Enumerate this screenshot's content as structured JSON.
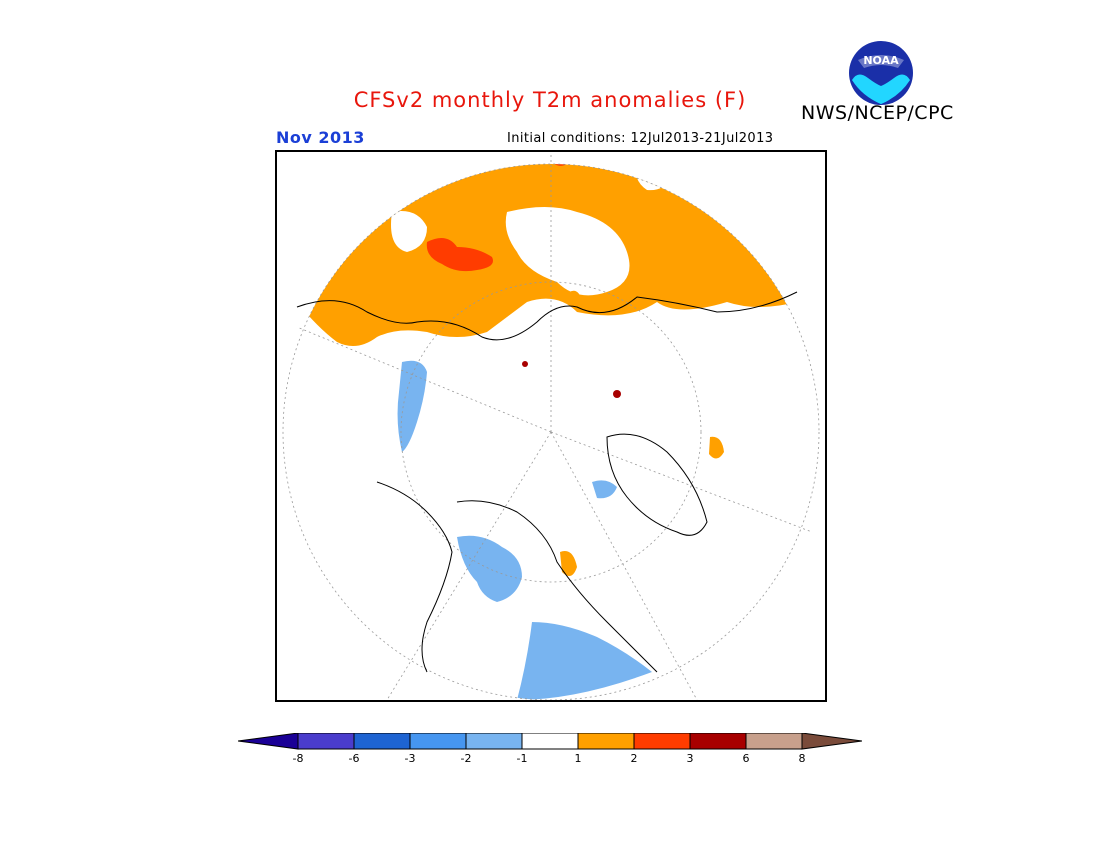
{
  "header": {
    "title": "CFSv2 monthly T2m anomalies (F)",
    "month": "Nov 2013",
    "initial_conditions": "Initial conditions: 12Jul2013-21Jul2013",
    "agency": "NWS/NCEP/CPC",
    "logo_text": "NOAA"
  },
  "map": {
    "projection": "north polar stereographic",
    "colors": {
      "ocean_background": "#ffffff",
      "warm_1_2": "#ffa000",
      "warm_2_3": "#ff3c00",
      "warm_3_6": "#a80000",
      "cool_m1_m2": "#78b4f0",
      "cool_m2_m3": "#4696f0"
    }
  },
  "colorbar": {
    "tick_labels": [
      "-8",
      "-6",
      "-3",
      "-2",
      "-1",
      "1",
      "2",
      "3",
      "6",
      "8"
    ],
    "colors": [
      "#1a0096",
      "#4a3ccc",
      "#1e64d2",
      "#4696f0",
      "#78b4f0",
      "#ffffff",
      "#ffa000",
      "#ff3c00",
      "#a80000",
      "#c8a08c",
      "#7a4b3a"
    ]
  }
}
